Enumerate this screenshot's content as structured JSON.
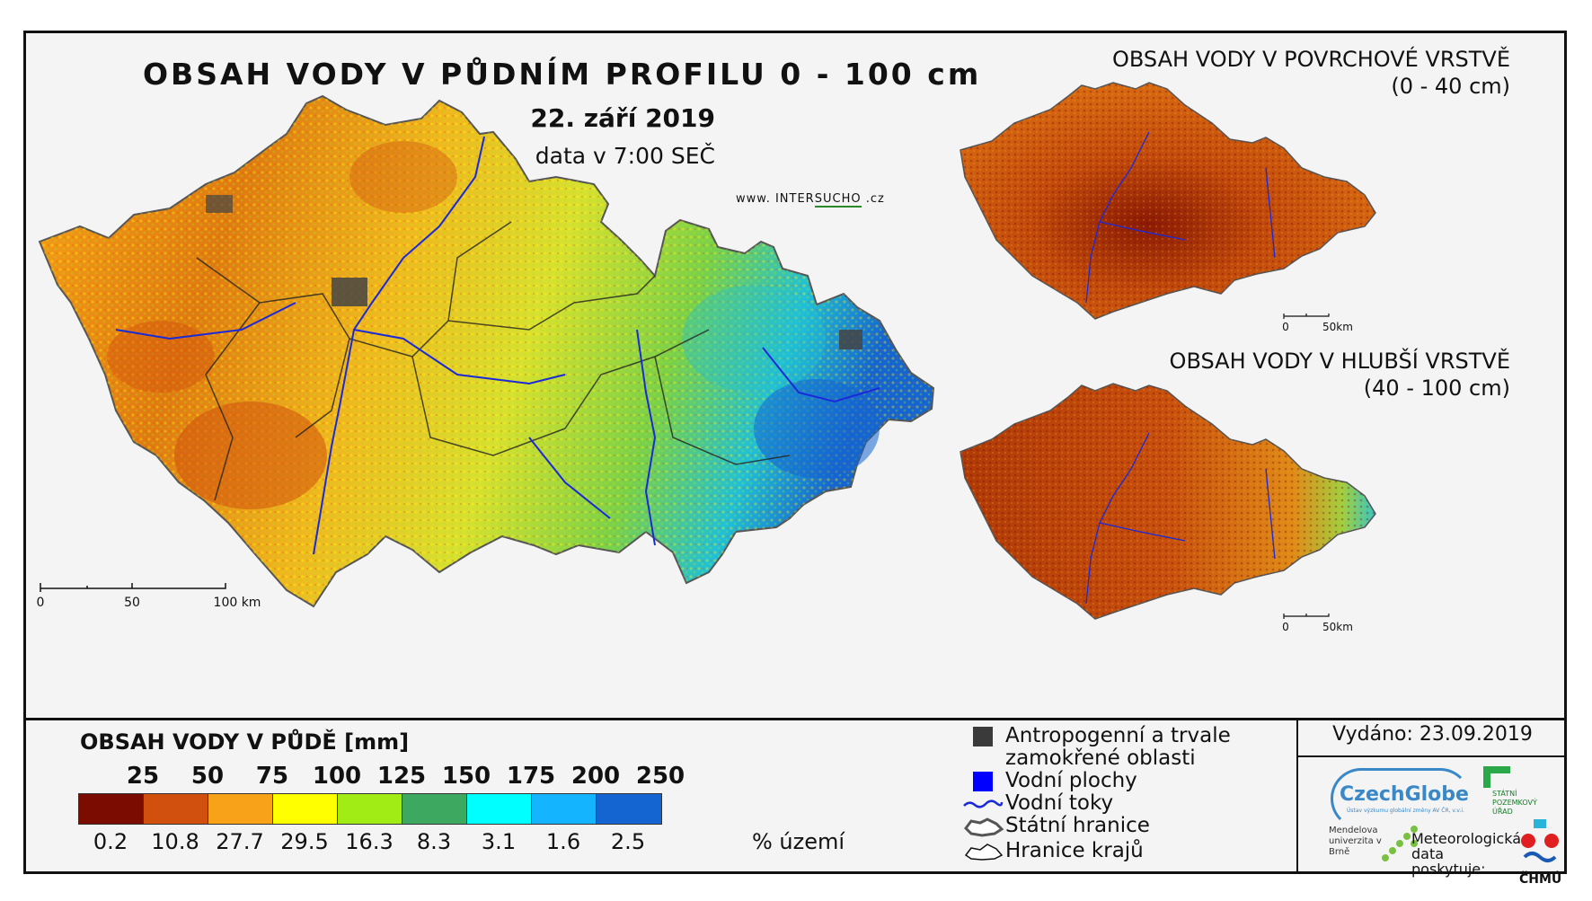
{
  "main_map": {
    "title": "OBSAH VODY V PŮDNÍM PROFILU 0 - 100 cm",
    "date": "22. září 2019",
    "time": "data v 7:00 SEČ",
    "website_prefix": "www. INTER",
    "website_highlight": "SUCHO",
    "website_suffix": " .cz",
    "scale_labels": [
      "0",
      "50",
      "100 km"
    ]
  },
  "surface_map": {
    "title_line1": "OBSAH VODY V POVRCHOVÉ VRSTVĚ",
    "title_line2": "(0 - 40 cm)",
    "scale_labels": [
      "0",
      "50km"
    ]
  },
  "deep_map": {
    "title_line1": "OBSAH VODY V HLUBŠÍ VRSTVĚ",
    "title_line2": "(40 - 100 cm)",
    "scale_labels": [
      "0",
      "50km"
    ]
  },
  "legend": {
    "title": "OBSAH VODY V PŮDĚ [mm]",
    "thresholds": [
      "25",
      "50",
      "75",
      "100",
      "125",
      "150",
      "175",
      "200",
      "250"
    ],
    "colors": [
      "#7a0c02",
      "#d2500e",
      "#f7a219",
      "#ffff00",
      "#a0ec14",
      "#3ca860",
      "#00ffff",
      "#14b4ff",
      "#1464d2"
    ],
    "percentages": [
      "0.2",
      "10.8",
      "27.7",
      "29.5",
      "16.3",
      "8.3",
      "3.1",
      "1.6",
      "2.5"
    ],
    "percent_unit": "% území"
  },
  "symbol_legend": {
    "items": [
      {
        "icon": "dark-square-icon",
        "line1": "Antropogenní a trvale",
        "line2": "zamokřené oblasti"
      },
      {
        "icon": "blue-square-icon",
        "line1": "Vodní plochy",
        "line2": ""
      },
      {
        "icon": "river-line-icon",
        "line1": "Vodní toky",
        "line2": ""
      },
      {
        "icon": "state-border-icon",
        "line1": "Státní hranice",
        "line2": ""
      },
      {
        "icon": "region-border-icon",
        "line1": "Hranice krajů",
        "line2": ""
      }
    ]
  },
  "credits": {
    "issued": "Vydáno: 23.09.2019",
    "czechglobe": "CzechGlobe",
    "czechglobe_sub": "Ústav výzkumu globální změny AV ČR, v.v.i.",
    "spu": "STÁTNÍ POZEMKOVÝ ÚŘAD",
    "mendelu": "Mendelova univerzita v Brně",
    "meteo": "Meteorologická data poskytuje:",
    "chmu": "ČHMÚ"
  }
}
